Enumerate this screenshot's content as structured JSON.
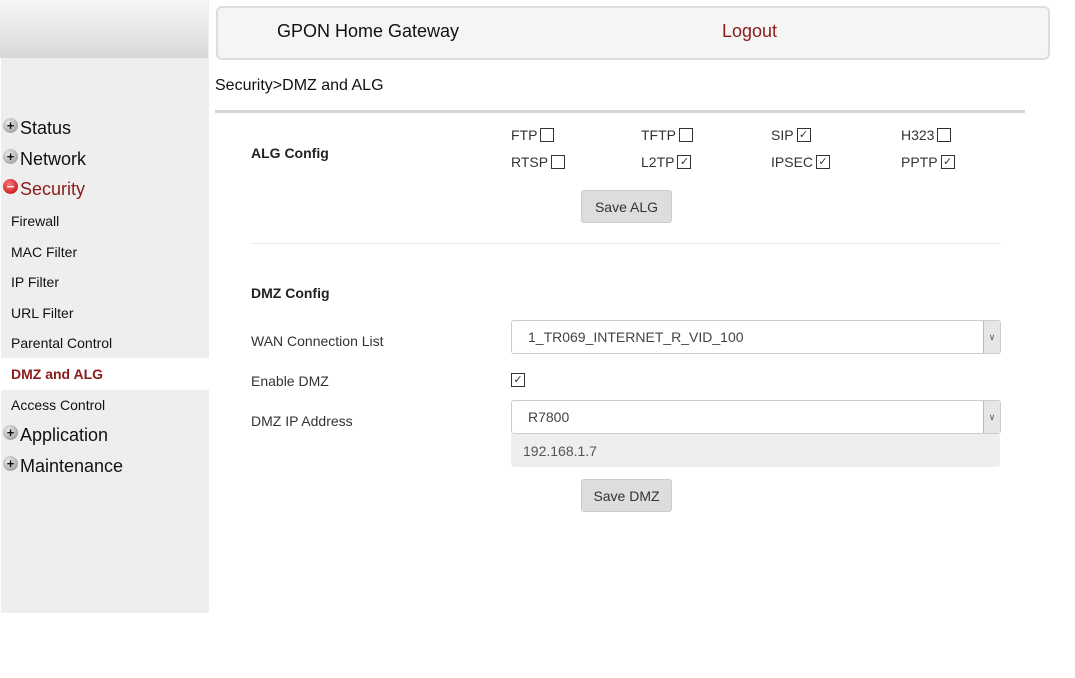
{
  "header": {
    "title": "GPON Home Gateway",
    "logout": "Logout"
  },
  "breadcrumb": "Security>DMZ and ALG",
  "sidebar": {
    "menus": [
      {
        "label": "Status",
        "expanded": false
      },
      {
        "label": "Network",
        "expanded": false
      },
      {
        "label": "Security",
        "expanded": true
      },
      {
        "label": "Application",
        "expanded": false
      },
      {
        "label": "Maintenance",
        "expanded": false
      }
    ],
    "security_items": [
      {
        "label": "Firewall"
      },
      {
        "label": "MAC Filter"
      },
      {
        "label": "IP Filter"
      },
      {
        "label": "URL Filter"
      },
      {
        "label": "Parental Control"
      },
      {
        "label": "DMZ and ALG",
        "active": true
      },
      {
        "label": "Access Control"
      }
    ]
  },
  "alg": {
    "title": "ALG Config",
    "options": [
      {
        "label": "FTP",
        "checked": false
      },
      {
        "label": "TFTP",
        "checked": false
      },
      {
        "label": "SIP",
        "checked": true
      },
      {
        "label": "H323",
        "checked": false
      },
      {
        "label": "RTSP",
        "checked": false
      },
      {
        "label": "L2TP",
        "checked": true
      },
      {
        "label": "IPSEC",
        "checked": true
      },
      {
        "label": "PPTP",
        "checked": true
      }
    ],
    "save": "Save ALG"
  },
  "dmz": {
    "title": "DMZ Config",
    "wan_label": "WAN Connection List",
    "wan_value": "1_TR069_INTERNET_R_VID_100",
    "enable_label": "Enable DMZ",
    "enable_checked": true,
    "ip_label": "DMZ IP Address",
    "ip_device": "R7800",
    "ip_value": "192.168.1.7",
    "save": "Save DMZ"
  },
  "colors": {
    "accent": "#8b1a1a"
  }
}
